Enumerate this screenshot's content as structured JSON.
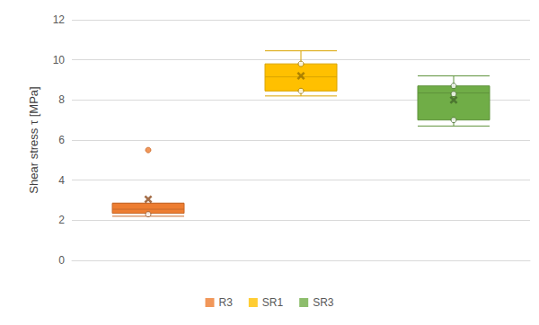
{
  "chart_data": {
    "type": "boxplot",
    "y_label": "Shear stress τ [MPa]",
    "categories": [
      null,
      null,
      null
    ],
    "series": [
      {
        "name": "R3",
        "color": "#ed7d31",
        "min": 2.2,
        "q1": 2.35,
        "median": 2.55,
        "q3": 2.85,
        "max": 2.85,
        "mean": 3.05,
        "points": [
          2.3
        ],
        "outliers": [
          5.5
        ]
      },
      {
        "name": "SR1",
        "color": "#ffc000",
        "min": 8.2,
        "q1": 8.45,
        "median": 9.15,
        "q3": 9.8,
        "max": 10.45,
        "mean": 9.2,
        "points": [
          8.45,
          9.8
        ],
        "outliers": []
      },
      {
        "name": "SR3",
        "color": "#70ad47",
        "min": 6.7,
        "q1": 7.0,
        "median": 8.35,
        "q3": 8.7,
        "max": 9.2,
        "mean": 8.0,
        "points": [
          7.0,
          8.3,
          8.7
        ],
        "outliers": []
      }
    ],
    "ylim": [
      0,
      12
    ],
    "yticks": [
      0,
      2,
      4,
      6,
      8,
      10,
      12
    ],
    "grid": true,
    "legend": "bottom"
  }
}
